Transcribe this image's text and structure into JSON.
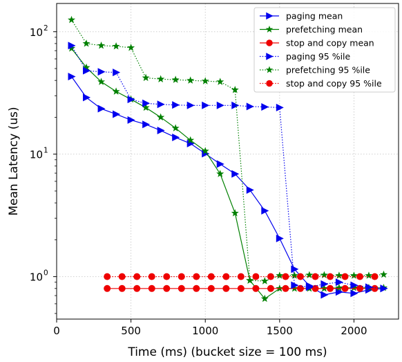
{
  "chart_data": {
    "type": "line",
    "xlabel": "Time (ms) (bucket size = 100 ms)",
    "ylabel": "Mean Latency (us)",
    "xlim": [
      0,
      2300
    ],
    "ylim": [
      0.45,
      170
    ],
    "yscale": "log",
    "xticks": [
      0,
      500,
      1000,
      1500,
      2000
    ],
    "xtick_labels": [
      "0",
      "500",
      "1000",
      "1500",
      "2000"
    ],
    "yticks": [
      1,
      10,
      100
    ],
    "ytick_labels": [
      "10",
      "10",
      "10"
    ],
    "ytick_exponents": [
      "0",
      "1",
      "2"
    ],
    "grid": true,
    "legend_position": "top-right",
    "series": [
      {
        "name": "paging mean",
        "color": "#0000ee",
        "linestyle": "solid",
        "marker": "triangle-right",
        "x": [
          100,
          200,
          300,
          400,
          500,
          600,
          700,
          800,
          900,
          1000,
          1100,
          1200,
          1300,
          1400,
          1500,
          1600,
          1700,
          1800,
          1900,
          2000,
          2100,
          2200
        ],
        "y": [
          43,
          29,
          23.5,
          21.2,
          19,
          17.5,
          15.6,
          13.7,
          12.2,
          10.1,
          8.3,
          6.9,
          5.1,
          3.45,
          2.05,
          1.15,
          0.84,
          0.71,
          0.75,
          0.73,
          0.78,
          0.8
        ]
      },
      {
        "name": "prefetching mean",
        "color": "#008000",
        "linestyle": "solid",
        "marker": "star",
        "x": [
          100,
          200,
          300,
          400,
          500,
          600,
          700,
          800,
          900,
          1000,
          1100,
          1200,
          1300,
          1400,
          1500,
          1600,
          1700,
          1800,
          1900,
          2000,
          2100,
          2200
        ],
        "y": [
          73,
          51,
          39,
          32.5,
          28,
          24,
          20,
          16.3,
          13,
          10.6,
          6.9,
          3.3,
          0.93,
          0.66,
          0.8,
          0.8,
          0.8,
          0.8,
          0.81,
          0.81,
          0.81,
          0.81
        ]
      },
      {
        "name": "stop and copy mean",
        "color": "#ee0000",
        "linestyle": "solid",
        "marker": "circle",
        "x": [
          340,
          440,
          540,
          640,
          740,
          840,
          940,
          1040,
          1140,
          1240,
          1340,
          1440,
          1540,
          1640,
          1740,
          1840,
          1940,
          2040,
          2140
        ],
        "y": [
          0.8,
          0.8,
          0.8,
          0.8,
          0.8,
          0.8,
          0.8,
          0.8,
          0.8,
          0.8,
          0.8,
          0.8,
          0.8,
          0.8,
          0.8,
          0.8,
          0.8,
          0.8,
          0.8
        ]
      },
      {
        "name": "paging 95 %ile",
        "color": "#0000ee",
        "linestyle": "dotted",
        "marker": "triangle-right",
        "x": [
          100,
          200,
          300,
          400,
          500,
          600,
          700,
          800,
          900,
          1000,
          1100,
          1200,
          1300,
          1400,
          1500,
          1600,
          1700,
          1800,
          1900,
          2000,
          2100,
          2200
        ],
        "y": [
          77,
          48,
          47,
          46.5,
          28,
          26,
          25.5,
          25.2,
          25,
          25,
          25,
          25,
          24.5,
          24.3,
          24,
          0.85,
          0.82,
          0.87,
          0.9,
          0.85,
          0.82,
          0.8
        ]
      },
      {
        "name": "prefetching 95 %ile",
        "color": "#008000",
        "linestyle": "dotted",
        "marker": "star",
        "x": [
          100,
          200,
          300,
          400,
          500,
          600,
          700,
          800,
          900,
          1000,
          1100,
          1200,
          1300,
          1400,
          1500,
          1600,
          1700,
          1800,
          1900,
          2000,
          2100,
          2200
        ],
        "y": [
          125,
          80,
          77,
          76,
          74,
          42,
          41,
          40.5,
          40,
          39.5,
          39,
          33.5,
          0.93,
          0.92,
          1.02,
          1.02,
          1.03,
          1.03,
          1.02,
          1.02,
          1.02,
          1.04
        ]
      },
      {
        "name": "stop and copy 95 %ile",
        "color": "#ee0000",
        "linestyle": "dotted",
        "marker": "circle",
        "x": [
          340,
          440,
          540,
          640,
          740,
          840,
          940,
          1040,
          1140,
          1240,
          1340,
          1440,
          1540,
          1640,
          1740,
          1840,
          1940,
          2040,
          2140
        ],
        "y": [
          1.0,
          1.0,
          1.0,
          1.0,
          1.0,
          1.0,
          1.0,
          1.0,
          1.0,
          1.0,
          1.0,
          1.0,
          1.0,
          1.0,
          1.0,
          1.0,
          1.0,
          1.0,
          1.0
        ]
      }
    ]
  }
}
